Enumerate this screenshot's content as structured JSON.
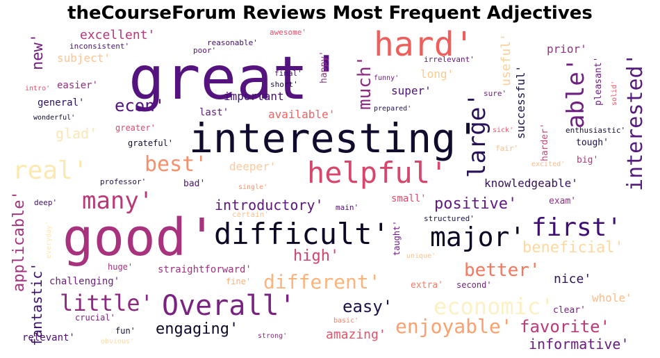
{
  "title": "theCourseForum Reviews Most Frequent Adjectives",
  "words": [
    {
      "text": "great'",
      "color": "#54137e"
    },
    {
      "text": "good'",
      "color": "#a8327d"
    },
    {
      "text": "interesting'",
      "color": "#110b2e"
    },
    {
      "text": "hard'",
      "color": "#ee5f5c"
    },
    {
      "text": "helpful'",
      "color": "#d9466b"
    },
    {
      "text": "difficult'",
      "color": "#0c0826"
    },
    {
      "text": "Overall'",
      "color": "#7a2282"
    },
    {
      "text": "major'",
      "color": "#0a0822"
    },
    {
      "text": "first'",
      "color": "#400f73"
    },
    {
      "text": "real'",
      "color": "#fbe9b0"
    },
    {
      "text": "many'",
      "color": "#ba3878"
    },
    {
      "text": "best'",
      "color": "#f68f6b"
    },
    {
      "text": "little'",
      "color": "#8c2981"
    },
    {
      "text": "economic'",
      "color": "#fcf1c4"
    },
    {
      "text": "enjoyable'",
      "color": "#fca06e"
    },
    {
      "text": "different'",
      "color": "#fdb47c"
    },
    {
      "text": "positive'",
      "color": "#5f187f"
    },
    {
      "text": "better'",
      "color": "#f8765c"
    },
    {
      "text": "favorite'",
      "color": "#bd3977"
    },
    {
      "text": "easy'",
      "color": "#1d1147"
    },
    {
      "text": "engaging'",
      "color": "#0d0a29"
    },
    {
      "text": "high'",
      "color": "#d3436e"
    },
    {
      "text": "beneficial'",
      "color": "#fdd9a0"
    },
    {
      "text": "informative'",
      "color": "#6a1c81"
    },
    {
      "text": "introductory'",
      "color": "#5b167e"
    },
    {
      "text": "econ'",
      "color": "#531581"
    },
    {
      "text": "excellent'",
      "color": "#b5367a"
    },
    {
      "text": "amazing'",
      "color": "#ee4f69"
    },
    {
      "text": "knowledgeable'",
      "color": "#33105f"
    },
    {
      "text": "available'",
      "color": "#f06261"
    },
    {
      "text": "deeper'",
      "color": "#fec89a"
    },
    {
      "text": "glad'",
      "color": "#fde6b5"
    },
    {
      "text": "important'",
      "color": "#401072"
    },
    {
      "text": "nice'",
      "color": "#2f1163"
    },
    {
      "text": "whole'",
      "color": "#fdbb84"
    },
    {
      "text": "prior'",
      "color": "#923185"
    },
    {
      "text": "long'",
      "color": "#fdc98c"
    },
    {
      "text": "super'",
      "color": "#4e1376"
    },
    {
      "text": "subject'",
      "color": "#fdc492"
    },
    {
      "text": "easier'",
      "color": "#952c80"
    },
    {
      "text": "straightforward'",
      "color": "#a22f7f"
    },
    {
      "text": "challenging'",
      "color": "#6a1c7f"
    },
    {
      "text": "relevant'",
      "color": "#4b0f6e"
    },
    {
      "text": "general'",
      "color": "#2a115d"
    },
    {
      "text": "last'",
      "color": "#5e1a7c"
    },
    {
      "text": "small'",
      "color": "#e24a68"
    },
    {
      "text": "exam'",
      "color": "#912d80"
    },
    {
      "text": "big'",
      "color": "#b83578"
    },
    {
      "text": "bad'",
      "color": "#4e1478"
    },
    {
      "text": "tough'",
      "color": "#1c1044"
    },
    {
      "text": "clear'",
      "color": "#782281"
    },
    {
      "text": "extra'",
      "color": "#f57b62"
    },
    {
      "text": "second'",
      "color": "#742180"
    },
    {
      "text": "huge'",
      "color": "#a5307d"
    },
    {
      "text": "fine'",
      "color": "#fcb17b"
    },
    {
      "text": "crucial'",
      "color": "#7c2382"
    },
    {
      "text": "fun'",
      "color": "#1a1042"
    },
    {
      "text": "greater'",
      "color": "#e5466b"
    },
    {
      "text": "grateful'",
      "color": "#120c31"
    },
    {
      "text": "enthusiastic'",
      "color": "#180f3d"
    },
    {
      "text": "professor'",
      "color": "#28114f"
    },
    {
      "text": "deep'",
      "color": "#3b0f70"
    },
    {
      "text": "main'",
      "color": "#4d1273"
    },
    {
      "text": "structured'",
      "color": "#1d1147"
    },
    {
      "text": "sure'",
      "color": "#6e1f81"
    },
    {
      "text": "awesome'",
      "color": "#e64f6a"
    },
    {
      "text": "inconsistent'",
      "color": "#4a1079"
    },
    {
      "text": "reasonable'",
      "color": "#3a0f6b"
    },
    {
      "text": "poor'",
      "color": "#57157e"
    },
    {
      "text": "irrelevant'",
      "color": "#5c167f"
    },
    {
      "text": "final'",
      "color": "#411070"
    },
    {
      "text": "short'",
      "color": "#1b0c3f"
    },
    {
      "text": "funny'",
      "color": "#6e1e81"
    },
    {
      "text": "prepared'",
      "color": "#231151"
    },
    {
      "text": "wonderful'",
      "color": "#0d0a2a"
    },
    {
      "text": "intro'",
      "color": "#e4506b"
    },
    {
      "text": "sick'",
      "color": "#ea5769"
    },
    {
      "text": "fair'",
      "color": "#fbbf8a"
    },
    {
      "text": "excited'",
      "color": "#fcb98c"
    },
    {
      "text": "single'",
      "color": "#fb9470"
    },
    {
      "text": "certain'",
      "color": "#fcc391"
    },
    {
      "text": "unique'",
      "color": "#fdc28e"
    },
    {
      "text": "basic'",
      "color": "#f87d66"
    },
    {
      "text": "obvious'",
      "color": "#fcd8a2"
    },
    {
      "text": "strong'",
      "color": "#8c2981"
    },
    {
      "text": "new'",
      "color": "#731f7f"
    },
    {
      "text": "much'",
      "color": "#8d2a81"
    },
    {
      "text": "large'",
      "color": "#281258"
    },
    {
      "text": "able'",
      "color": "#6f1f81"
    },
    {
      "text": "interested'",
      "color": "#541a7c"
    },
    {
      "text": "useful'",
      "color": "#fccf96"
    },
    {
      "text": "happy'",
      "color": "#933183"
    },
    {
      "text": "successful'",
      "color": "#1d1145"
    },
    {
      "text": "pleasant'",
      "color": "#6a1c7f"
    },
    {
      "text": "solid'",
      "color": "#ed5766"
    },
    {
      "text": "harder'",
      "color": "#d3436e"
    },
    {
      "text": "applicable'",
      "color": "#a5317e"
    },
    {
      "text": "fantastic'",
      "color": "#3b0f70"
    },
    {
      "text": "everyday'",
      "color": "#fde6b3"
    },
    {
      "text": "taught'",
      "color": "#6a1c81"
    }
  ]
}
